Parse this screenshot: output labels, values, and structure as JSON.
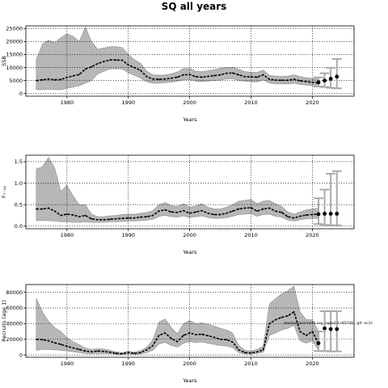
{
  "page": {
    "title": "SQ all years"
  },
  "colors": {
    "band": "#b7b7b7",
    "band_edge": "#8c8c8c",
    "line": "#000000",
    "errorbar": "#aaaaaa",
    "grid": "#000000"
  },
  "chart_data": [
    {
      "type": "line",
      "title": "",
      "xlabel": "Years",
      "ylabel": "SSB",
      "xlim": [
        1973.3,
        2026.8
      ],
      "ylim": [
        -1000,
        26000
      ],
      "grid": true,
      "xticks": [
        1980,
        1990,
        2000,
        2010,
        2020
      ],
      "yticks": [
        0,
        5000,
        10000,
        15000,
        20000,
        25000
      ],
      "xtick_labels": [
        "1980",
        "1990",
        "2000",
        "2010",
        "2020"
      ],
      "ytick_labels": [
        "0",
        "5000",
        "10000",
        "15000",
        "20000",
        "25000"
      ],
      "x": [
        1975,
        1976,
        1977,
        1978,
        1979,
        1980,
        1981,
        1982,
        1983,
        1984,
        1985,
        1986,
        1987,
        1988,
        1989,
        1990,
        1991,
        1992,
        1993,
        1994,
        1995,
        1996,
        1997,
        1998,
        1999,
        2000,
        2001,
        2002,
        2003,
        2004,
        2005,
        2006,
        2007,
        2008,
        2009,
        2010,
        2011,
        2012,
        2013,
        2014,
        2015,
        2016,
        2017,
        2018,
        2019,
        2020,
        2021
      ],
      "series": [
        {
          "role": "estimate",
          "values": [
            5000,
            5300,
            5600,
            5300,
            5400,
            6200,
            6800,
            7300,
            9400,
            10300,
            11500,
            12300,
            12900,
            12900,
            12800,
            11000,
            10000,
            8900,
            6500,
            5600,
            5500,
            5600,
            5900,
            6300,
            7200,
            7300,
            6500,
            6300,
            6600,
            6900,
            7200,
            7800,
            7900,
            7200,
            6500,
            6400,
            6300,
            7200,
            5500,
            5200,
            5100,
            5100,
            5500,
            4900,
            4600,
            4300,
            4100
          ]
        },
        {
          "role": "upper",
          "values": [
            13000,
            19000,
            20500,
            19500,
            21500,
            23000,
            22000,
            20000,
            25500,
            20000,
            17000,
            17500,
            18000,
            18000,
            17700,
            15000,
            13000,
            11600,
            8600,
            7200,
            7100,
            7100,
            7600,
            8300,
            9600,
            9600,
            8600,
            8400,
            8800,
            9200,
            9700,
            10000,
            10100,
            9400,
            8400,
            8200,
            8100,
            9000,
            7000,
            6700,
            6600,
            6700,
            7200,
            6500,
            6100,
            5800,
            5600
          ]
        },
        {
          "role": "lower",
          "values": [
            1500,
            1500,
            1700,
            1500,
            1500,
            2000,
            2500,
            3000,
            4000,
            5000,
            7500,
            8500,
            9500,
            9500,
            9500,
            8000,
            7000,
            6000,
            4500,
            4000,
            4000,
            4200,
            4400,
            4700,
            5300,
            5400,
            4800,
            4600,
            4800,
            5000,
            5200,
            5600,
            5700,
            5100,
            4700,
            4600,
            4500,
            5300,
            4000,
            3800,
            3700,
            3700,
            4000,
            3500,
            3300,
            3000,
            2800
          ]
        }
      ],
      "forecast": {
        "x": [
          2021,
          2022,
          2023,
          2024
        ],
        "values": [
          4300,
          5000,
          5700,
          6500
        ],
        "upper": [
          6200,
          7800,
          9900,
          13300
        ],
        "lower": [
          2700,
          2500,
          2200,
          2000
        ]
      }
    },
    {
      "type": "line",
      "title": "",
      "xlabel": "Years",
      "ylabel": "F₇₋₁₀",
      "xlim": [
        1973.3,
        2026.8
      ],
      "ylim": [
        -0.06,
        1.65
      ],
      "grid": true,
      "xticks": [
        1980,
        1990,
        2000,
        2010,
        2020
      ],
      "yticks": [
        0,
        0.5,
        1.0,
        1.5
      ],
      "xtick_labels": [
        "1980",
        "1990",
        "2000",
        "2010",
        "2020"
      ],
      "ytick_labels": [
        "0.0",
        "0.5",
        "1.0",
        "1.5"
      ],
      "x": [
        1975,
        1976,
        1977,
        1978,
        1979,
        1980,
        1981,
        1982,
        1983,
        1984,
        1985,
        1986,
        1987,
        1988,
        1989,
        1990,
        1991,
        1992,
        1993,
        1994,
        1995,
        1996,
        1997,
        1998,
        1999,
        2000,
        2001,
        2002,
        2003,
        2004,
        2005,
        2006,
        2007,
        2008,
        2009,
        2010,
        2011,
        2012,
        2013,
        2014,
        2015,
        2016,
        2017,
        2018,
        2019,
        2020,
        2021
      ],
      "series": [
        {
          "role": "estimate",
          "values": [
            0.4,
            0.4,
            0.42,
            0.35,
            0.25,
            0.28,
            0.26,
            0.22,
            0.25,
            0.17,
            0.15,
            0.15,
            0.16,
            0.17,
            0.18,
            0.19,
            0.19,
            0.21,
            0.22,
            0.25,
            0.35,
            0.38,
            0.33,
            0.32,
            0.36,
            0.3,
            0.33,
            0.36,
            0.3,
            0.27,
            0.27,
            0.3,
            0.35,
            0.4,
            0.42,
            0.43,
            0.35,
            0.4,
            0.42,
            0.35,
            0.32,
            0.22,
            0.19,
            0.23,
            0.26,
            0.27,
            0.28
          ]
        },
        {
          "role": "upper",
          "values": [
            1.33,
            1.38,
            1.6,
            1.35,
            0.8,
            0.95,
            0.7,
            0.5,
            0.5,
            0.28,
            0.22,
            0.22,
            0.24,
            0.25,
            0.27,
            0.28,
            0.28,
            0.3,
            0.32,
            0.36,
            0.5,
            0.55,
            0.48,
            0.46,
            0.52,
            0.44,
            0.47,
            0.52,
            0.44,
            0.4,
            0.4,
            0.44,
            0.5,
            0.58,
            0.6,
            0.62,
            0.52,
            0.58,
            0.6,
            0.52,
            0.46,
            0.33,
            0.28,
            0.33,
            0.38,
            0.4,
            0.42
          ]
        },
        {
          "role": "lower",
          "values": [
            0.13,
            0.13,
            0.13,
            0.12,
            0.1,
            0.1,
            0.09,
            0.09,
            0.1,
            0.09,
            0.09,
            0.09,
            0.1,
            0.1,
            0.11,
            0.12,
            0.12,
            0.13,
            0.14,
            0.16,
            0.23,
            0.25,
            0.22,
            0.21,
            0.24,
            0.2,
            0.22,
            0.24,
            0.2,
            0.18,
            0.18,
            0.2,
            0.23,
            0.27,
            0.28,
            0.29,
            0.23,
            0.27,
            0.28,
            0.23,
            0.21,
            0.14,
            0.12,
            0.15,
            0.17,
            0.18,
            0.18
          ]
        }
      ],
      "forecast": {
        "x": [
          2021,
          2022,
          2023,
          2024
        ],
        "values": [
          0.28,
          0.29,
          0.29,
          0.29
        ],
        "upper": [
          0.65,
          0.85,
          1.22,
          1.28
        ],
        "lower": [
          0.05,
          0.03,
          0.02,
          0.02
        ]
      }
    },
    {
      "type": "line",
      "title": "",
      "xlabel": "Years",
      "ylabel": "Recruits (age 1)",
      "xlim": [
        1973.3,
        2026.8
      ],
      "ylim": [
        -3000,
        90000
      ],
      "grid": true,
      "xticks": [
        1980,
        1990,
        2000,
        2010,
        2020
      ],
      "yticks": [
        0,
        20000,
        40000,
        60000,
        80000
      ],
      "xtick_labels": [
        "1980",
        "1990",
        "2000",
        "2010",
        "2020"
      ],
      "ytick_labels": [
        "0",
        "20000",
        "40000",
        "60000",
        "80000"
      ],
      "x": [
        1975,
        1976,
        1977,
        1978,
        1979,
        1980,
        1981,
        1982,
        1983,
        1984,
        1985,
        1986,
        1987,
        1988,
        1989,
        1990,
        1991,
        1992,
        1993,
        1994,
        1995,
        1996,
        1997,
        1998,
        1999,
        2000,
        2001,
        2002,
        2003,
        2004,
        2005,
        2006,
        2007,
        2008,
        2009,
        2010,
        2011,
        2012,
        2013,
        2014,
        2015,
        2016,
        2017,
        2018,
        2019,
        2020,
        2021
      ],
      "series": [
        {
          "role": "estimate",
          "values": [
            20000,
            19500,
            18000,
            15500,
            13500,
            11000,
            9000,
            7000,
            5000,
            4000,
            5000,
            4500,
            3500,
            2000,
            1500,
            3000,
            2000,
            3000,
            6500,
            12000,
            25000,
            28000,
            21000,
            17000,
            25000,
            28000,
            26000,
            26500,
            24500,
            22500,
            20000,
            19500,
            16500,
            6500,
            3000,
            2500,
            4000,
            6500,
            40000,
            45000,
            48000,
            50000,
            55000,
            30000,
            25000,
            30000,
            15000
          ]
        },
        {
          "role": "upper",
          "values": [
            72000,
            55000,
            43000,
            35000,
            30000,
            22000,
            17000,
            13000,
            9000,
            7000,
            8000,
            7500,
            6000,
            4000,
            3000,
            5000,
            3500,
            5500,
            10000,
            19000,
            42000,
            46000,
            35000,
            27000,
            40000,
            44000,
            40000,
            41000,
            39000,
            37000,
            34000,
            32000,
            28000,
            12000,
            6000,
            5000,
            7000,
            11000,
            65000,
            72000,
            78000,
            82000,
            88000,
            55000,
            45000,
            45000,
            30000
          ]
        },
        {
          "role": "lower",
          "values": [
            6000,
            7000,
            7000,
            6500,
            6000,
            5000,
            4000,
            3000,
            2000,
            1500,
            2000,
            1800,
            1500,
            800,
            600,
            1200,
            800,
            1200,
            3000,
            6000,
            14000,
            16000,
            12000,
            10000,
            15000,
            17000,
            16000,
            16500,
            15000,
            13500,
            12000,
            11500,
            9500,
            3000,
            1200,
            1000,
            2000,
            3500,
            25000,
            28000,
            32000,
            34000,
            38000,
            18000,
            15000,
            18000,
            6000
          ]
        }
      ],
      "forecast": {
        "x": [
          2021,
          2022,
          2023,
          2024
        ],
        "values": [
          15000,
          34000,
          33000,
          33000
        ],
        "upper": [
          30000,
          56000,
          56000,
          56000
        ],
        "lower": [
          5000,
          5000,
          4500,
          4500
        ]
      },
      "annotation": "stockassessment.org, sq$e14 r4574S , git: ec2c"
    }
  ]
}
